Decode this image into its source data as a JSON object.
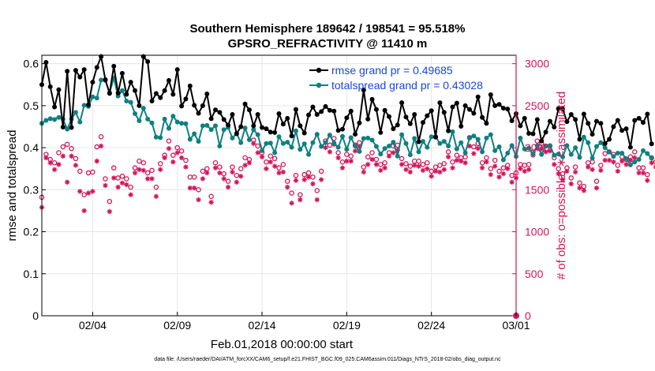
{
  "header": {
    "title_line1": "Southern Hemisphere 189642 / 198541 = 95.518%",
    "title_line2": "GPSRO_REFRACTIVITY @ 11410 m"
  },
  "footer": {
    "data_file": "data file: /Users/raeder/DAI/ATM_forcXX/CAM6_setup/f.e21.FHIST_BGC.f09_025.CAM6assim.011/Diags_NTrS_2018-02/obs_diag_output.nc"
  },
  "colors": {
    "rmse": "#000000",
    "spread": "#0f8080",
    "obs": "#d4145a",
    "legend_text": "#1a47d6",
    "grid": "#e6e6e6"
  },
  "chart_data": {
    "type": "line",
    "title": "Southern Hemisphere 189642 / 198541 = 95.518%",
    "subtitle": "GPSRO_REFRACTIVITY @ 11410 m",
    "xlabel": "Feb.01,2018 00:00:00 start",
    "ylabel": "rmse and totalspread",
    "y2label": "# of obs: o=possible; ∗=assimilated",
    "x_start": 0.5,
    "x_step": 0.25,
    "xlim": [
      0.5,
      28.5
    ],
    "xticks": [
      3.5,
      8.5,
      13.5,
      18.5,
      23.5,
      28.5
    ],
    "xtick_labels": [
      "02/04",
      "02/09",
      "02/14",
      "02/19",
      "02/24",
      "03/01"
    ],
    "ylim": [
      0,
      0.62
    ],
    "yticks": [
      0,
      0.1,
      0.2,
      0.3,
      0.4,
      0.5,
      0.6
    ],
    "ytick_labels": [
      "0",
      "0.1",
      "0.2",
      "0.3",
      "0.4",
      "0.5",
      "0.6"
    ],
    "y2lim": [
      0,
      3100
    ],
    "y2ticks": [
      0,
      500,
      1000,
      1500,
      2000,
      2500,
      3000
    ],
    "y2tick_labels": [
      "0",
      "500",
      "1000",
      "1500",
      "2000",
      "2500",
      "3000"
    ],
    "grid": true,
    "legend_position": "top-right",
    "series": [
      {
        "name": "rmse grand pr = 0.49685",
        "axis": "left",
        "values": [
          0.55,
          0.603,
          0.545,
          0.497,
          0.538,
          0.449,
          0.582,
          0.448,
          0.584,
          0.568,
          0.586,
          0.502,
          0.556,
          0.591,
          0.617,
          0.562,
          0.529,
          0.594,
          0.53,
          0.577,
          0.527,
          0.556,
          0.536,
          0.5,
          0.617,
          0.605,
          0.511,
          0.529,
          0.519,
          0.536,
          0.56,
          0.527,
          0.586,
          0.499,
          0.516,
          0.547,
          0.501,
          0.482,
          0.5,
          0.528,
          0.469,
          0.49,
          0.484,
          0.467,
          0.454,
          0.479,
          0.433,
          0.45,
          0.504,
          0.49,
          0.452,
          0.479,
          0.448,
          0.445,
          0.437,
          0.436,
          0.481,
          0.456,
          0.47,
          0.428,
          0.491,
          0.452,
          0.435,
          0.478,
          0.497,
          0.479,
          0.486,
          0.498,
          0.489,
          0.487,
          0.441,
          0.444,
          0.471,
          0.487,
          0.432,
          0.459,
          0.537,
          0.468,
          0.515,
          0.491,
          0.436,
          0.489,
          0.474,
          0.445,
          0.454,
          0.507,
          0.473,
          0.457,
          0.479,
          0.414,
          0.46,
          0.476,
          0.488,
          0.425,
          0.507,
          0.484,
          0.44,
          0.497,
          0.506,
          0.451,
          0.5,
          0.491,
          0.482,
          0.521,
          0.472,
          0.458,
          0.526,
          0.5,
          0.503,
          0.494,
          0.492,
          0.464,
          0.481,
          0.452,
          0.47,
          0.434,
          0.433,
          0.467,
          0.416,
          0.437,
          0.463,
          0.449,
          0.493,
          0.492,
          0.462,
          0.479,
          0.467,
          0.42,
          0.48,
          0.458,
          0.432,
          0.463,
          0.458,
          0.41,
          0.42,
          0.45,
          0.465,
          0.441,
          0.445,
          0.401,
          0.465,
          0.47,
          0.46,
          0.48,
          0.409
        ]
      },
      {
        "name": "totalspread grand pr = 0.43028",
        "axis": "left",
        "values": [
          0.458,
          0.465,
          0.469,
          0.467,
          0.472,
          0.468,
          0.444,
          0.468,
          0.484,
          0.461,
          0.501,
          0.498,
          0.521,
          0.518,
          0.561,
          0.56,
          0.531,
          0.566,
          0.523,
          0.536,
          0.511,
          0.508,
          0.481,
          0.464,
          0.494,
          0.468,
          0.459,
          0.425,
          0.424,
          0.468,
          0.446,
          0.475,
          0.461,
          0.458,
          0.457,
          0.42,
          0.433,
          0.415,
          0.452,
          0.453,
          0.443,
          0.452,
          0.404,
          0.443,
          0.448,
          0.423,
          0.434,
          0.412,
          0.447,
          0.419,
          0.443,
          0.431,
          0.393,
          0.41,
          0.411,
          0.388,
          0.426,
          0.41,
          0.413,
          0.401,
          0.44,
          0.396,
          0.409,
          0.384,
          0.412,
          0.432,
          0.403,
          0.412,
          0.43,
          0.411,
          0.401,
          0.427,
          0.396,
          0.424,
          0.404,
          0.391,
          0.422,
          0.423,
          0.418,
          0.403,
          0.385,
          0.398,
          0.404,
          0.413,
          0.38,
          0.431,
          0.41,
          0.383,
          0.422,
          0.39,
          0.415,
          0.401,
          0.426,
          0.426,
          0.41,
          0.415,
          0.404,
          0.438,
          0.397,
          0.412,
          0.388,
          0.423,
          0.428,
          0.42,
          0.39,
          0.423,
          0.431,
          0.393,
          0.402,
          0.371,
          0.387,
          0.405,
          0.379,
          0.423,
          0.397,
          0.399,
          0.385,
          0.405,
          0.384,
          0.404,
          0.405,
          0.382,
          0.385,
          0.378,
          0.405,
          0.384,
          0.4,
          0.377,
          0.425,
          0.412,
          0.375,
          0.403,
          0.412,
          0.4,
          0.39,
          0.379,
          0.387,
          0.387,
          0.374,
          0.359,
          0.366,
          0.372,
          0.393,
          0.386,
          0.375
        ]
      },
      {
        "name": "# of obs possible",
        "axis": "right",
        "marker": "o",
        "values": [
          1410,
          1920,
          1860,
          1820,
          1940,
          2010,
          2040,
          1990,
          1870,
          1720,
          1440,
          1700,
          1710,
          2010,
          2130,
          1630,
          1360,
          1760,
          1640,
          1660,
          1630,
          1530,
          1760,
          1840,
          1820,
          1700,
          1730,
          1530,
          1810,
          1910,
          2080,
          1910,
          2000,
          1960,
          1850,
          1650,
          1650,
          1500,
          1720,
          1750,
          1420,
          1820,
          1770,
          1690,
          1600,
          1770,
          1670,
          1750,
          1880,
          1860,
          2090,
          2020,
          1940,
          1830,
          1900,
          1870,
          1760,
          1800,
          1600,
          1460,
          1670,
          1440,
          1680,
          1700,
          1650,
          1490,
          1720,
          2080,
          2030,
          2110,
          1940,
          1830,
          1920,
          1900,
          2030,
          2060,
          1770,
          1890,
          1940,
          1860,
          1800,
          1820,
          1940,
          2020,
          2030,
          1870,
          1810,
          1780,
          1840,
          1840,
          1800,
          1820,
          1720,
          1770,
          1790,
          1810,
          1950,
          1830,
          1910,
          1880,
          1890,
          2120,
          2010,
          2050,
          1820,
          1880,
          1750,
          1850,
          1720,
          1760,
          1790,
          1670,
          1700,
          1800,
          1790,
          1800,
          1950,
          2080,
          2050,
          2020,
          2020,
          1880,
          1750,
          1690,
          1760,
          1640,
          1770,
          1580,
          1540,
          1820,
          1830,
          1600,
          1790,
          1930,
          1950,
          1920,
          1790,
          1890,
          1860,
          1890,
          1950,
          1760,
          1760,
          1680,
          1880,
          1830,
          1880
        ]
      },
      {
        "name": "# of obs assimilated",
        "axis": "right",
        "marker": "*",
        "values": [
          1290,
          1880,
          1820,
          1740,
          1800,
          1900,
          1590,
          1900,
          1790,
          1480,
          1250,
          1460,
          1480,
          1840,
          2020,
          1550,
          1240,
          1640,
          1530,
          1580,
          1560,
          1440,
          1700,
          1740,
          1730,
          1630,
          1630,
          1420,
          1740,
          1880,
          1990,
          1830,
          1940,
          1880,
          1770,
          1520,
          1520,
          1380,
          1630,
          1700,
          1350,
          1760,
          1700,
          1630,
          1530,
          1710,
          1590,
          1660,
          1790,
          1820,
          2050,
          1940,
          1890,
          1750,
          1830,
          1780,
          1700,
          1710,
          1530,
          1340,
          1610,
          1380,
          1620,
          1650,
          1570,
          1380,
          1620,
          2000,
          1950,
          2040,
          1880,
          1760,
          1840,
          1840,
          1960,
          2010,
          1710,
          1800,
          1860,
          1800,
          1730,
          1760,
          1900,
          1940,
          1970,
          1800,
          1740,
          1710,
          1790,
          1780,
          1730,
          1750,
          1660,
          1720,
          1710,
          1740,
          1890,
          1760,
          1850,
          1840,
          1820,
          2020,
          1930,
          1990,
          1760,
          1830,
          1680,
          1780,
          1650,
          1690,
          1750,
          1590,
          1640,
          1750,
          1720,
          1740,
          1910,
          1990,
          1990,
          1950,
          1960,
          1800,
          1690,
          1620,
          1720,
          1570,
          1710,
          1520,
          1490,
          1770,
          1740,
          1520,
          1730,
          1850,
          1850,
          1830,
          1720,
          1840,
          1800,
          1850,
          1880,
          1700,
          1700,
          1610,
          1820,
          1770,
          1840
        ]
      }
    ],
    "extra_right_point": 0
  }
}
